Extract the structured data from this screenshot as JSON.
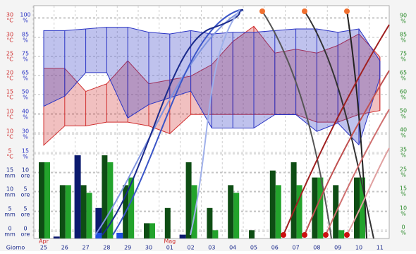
{
  "chart_data": {
    "type": "weather",
    "x_title": "Giorno",
    "categories": [
      "25",
      "26",
      "27",
      "28",
      "29",
      "30",
      "01",
      "02",
      "03",
      "04",
      "05",
      "06",
      "07",
      "08",
      "09",
      "10",
      "11"
    ],
    "months": [
      "Apr",
      null,
      null,
      null,
      null,
      null,
      "Mag",
      null,
      null,
      null,
      null,
      null,
      null,
      null,
      null,
      null,
      null
    ],
    "temp_labels": [
      {
        "value": "30",
        "unit": "°C"
      },
      {
        "value": "30",
        "unit": "°C"
      },
      {
        "value": "25",
        "unit": "°C"
      },
      {
        "value": "20",
        "unit": "°C"
      },
      {
        "value": "15",
        "unit": "°C"
      },
      {
        "value": "10",
        "unit": "°C"
      },
      {
        "value": "10",
        "unit": "°C"
      },
      {
        "value": "5",
        "unit": "°C"
      }
    ],
    "hum_labels": [
      {
        "value": "100",
        "unit": "%"
      },
      {
        "value": "85",
        "unit": "%"
      },
      {
        "value": "75",
        "unit": "%"
      },
      {
        "value": "65",
        "unit": "%"
      },
      {
        "value": "50",
        "unit": "%"
      },
      {
        "value": "40",
        "unit": "%"
      },
      {
        "value": "30",
        "unit": "%"
      },
      {
        "value": "15",
        "unit": "%"
      }
    ],
    "mm_labels": [
      {
        "value": "15",
        "unit": "mm"
      },
      {
        "value": "10",
        "unit": "mm"
      },
      {
        "value": "5",
        "unit": "mm"
      },
      {
        "value": "0",
        "unit": "mm"
      }
    ],
    "ore_labels": [
      {
        "value": "10",
        "unit": "ore"
      },
      {
        "value": "5",
        "unit": "ore"
      },
      {
        "value": "5",
        "unit": "ore"
      },
      {
        "value": "0",
        "unit": "ore"
      }
    ],
    "right_labels": [
      {
        "value": "90",
        "unit": "%"
      },
      {
        "value": "85",
        "unit": "%"
      },
      {
        "value": "75",
        "unit": "%"
      },
      {
        "value": "65",
        "unit": "%"
      },
      {
        "value": "60",
        "unit": "%"
      },
      {
        "value": "50",
        "unit": "%"
      },
      {
        "value": "40",
        "unit": "%"
      },
      {
        "value": "35",
        "unit": "%"
      },
      {
        "value": "25",
        "unit": "%"
      },
      {
        "value": "15",
        "unit": "%"
      },
      {
        "value": "10",
        "unit": "%"
      },
      {
        "value": "0",
        "unit": "%"
      }
    ],
    "temp_color": "#d03030",
    "temp_lim": [
      -1,
      38
    ],
    "temp_max": [
      22,
      22,
      16,
      18,
      24,
      18,
      19,
      20,
      23,
      29,
      33,
      26,
      27,
      26,
      28,
      31,
      25
    ],
    "temp_min": [
      2,
      7,
      7,
      8,
      8,
      7,
      5,
      10,
      10,
      10,
      10,
      10,
      10,
      8,
      8,
      10,
      11
    ],
    "hum_color": "#2a34c4",
    "hum_lim": [
      15,
      104
    ],
    "hum_max": [
      90,
      90,
      91,
      92,
      92,
      89,
      88,
      90,
      88,
      89,
      89,
      90,
      91,
      91,
      89,
      91,
      72
    ],
    "hum_min": [
      45,
      51,
      65,
      65,
      38,
      46,
      50,
      54,
      32,
      32,
      32,
      40,
      40,
      30,
      35,
      22,
      62
    ],
    "bar_lim": [
      0,
      13
    ],
    "bars": [
      {
        "color": "#0e4d14",
        "values": [
          12,
          8.4,
          8.4,
          13.1,
          8.4,
          2.4,
          4.8,
          12,
          4.8,
          8.4,
          1.3,
          10.7,
          12,
          9.6,
          8.4,
          9.6,
          null
        ]
      },
      {
        "color": "#23a32c",
        "values": [
          12,
          8.4,
          7.2,
          12,
          9.6,
          2.4,
          null,
          8.4,
          1.3,
          7.2,
          null,
          8.4,
          8.4,
          9.6,
          1.3,
          9.6,
          null
        ]
      },
      {
        "color": "#0b1a6e",
        "values": [
          null,
          0.3,
          13.1,
          4.8,
          null,
          null,
          null,
          0.6,
          null,
          null,
          null,
          null,
          null,
          null,
          null,
          null,
          null
        ]
      },
      {
        "color": "#1f4fe0",
        "values": [
          null,
          null,
          null,
          0.9,
          0.9,
          null,
          null,
          null,
          null,
          null,
          null,
          null,
          null,
          null,
          null,
          null,
          null
        ]
      }
    ]
  }
}
